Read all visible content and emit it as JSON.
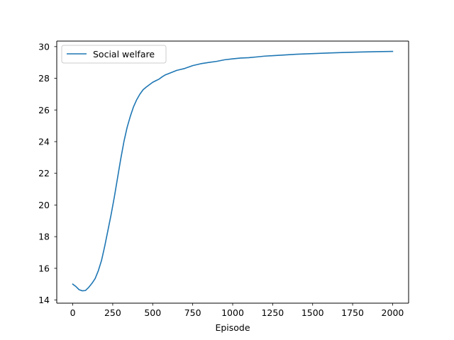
{
  "chart_data": {
    "type": "line",
    "title": "",
    "xlabel": "Episode",
    "ylabel": "",
    "xlim": [
      -100,
      2100
    ],
    "ylim": [
      13.8,
      30.35
    ],
    "xticks": [
      0,
      250,
      500,
      750,
      1000,
      1250,
      1500,
      1750,
      2000
    ],
    "yticks": [
      14,
      16,
      18,
      20,
      22,
      24,
      26,
      28,
      30
    ],
    "grid": false,
    "legend": {
      "position": "top-left",
      "entries": [
        "Social welfare"
      ]
    },
    "series": [
      {
        "name": "Social welfare",
        "color": "#1f77b4",
        "x": [
          0,
          20,
          40,
          60,
          80,
          100,
          120,
          140,
          160,
          180,
          200,
          220,
          240,
          260,
          280,
          300,
          320,
          340,
          360,
          380,
          400,
          420,
          440,
          460,
          480,
          500,
          520,
          540,
          560,
          580,
          600,
          650,
          700,
          750,
          800,
          850,
          900,
          950,
          1000,
          1050,
          1100,
          1150,
          1200,
          1300,
          1400,
          1500,
          1600,
          1700,
          1800,
          1900,
          2000
        ],
        "y": [
          15.0,
          14.85,
          14.65,
          14.58,
          14.6,
          14.8,
          15.05,
          15.35,
          15.85,
          16.5,
          17.4,
          18.4,
          19.4,
          20.5,
          21.7,
          22.9,
          24.0,
          24.9,
          25.6,
          26.2,
          26.65,
          27.0,
          27.28,
          27.45,
          27.6,
          27.75,
          27.85,
          27.95,
          28.1,
          28.22,
          28.3,
          28.5,
          28.62,
          28.8,
          28.92,
          29.0,
          29.07,
          29.17,
          29.23,
          29.28,
          29.3,
          29.35,
          29.4,
          29.46,
          29.52,
          29.56,
          29.6,
          29.63,
          29.66,
          29.68,
          29.7
        ]
      }
    ]
  }
}
